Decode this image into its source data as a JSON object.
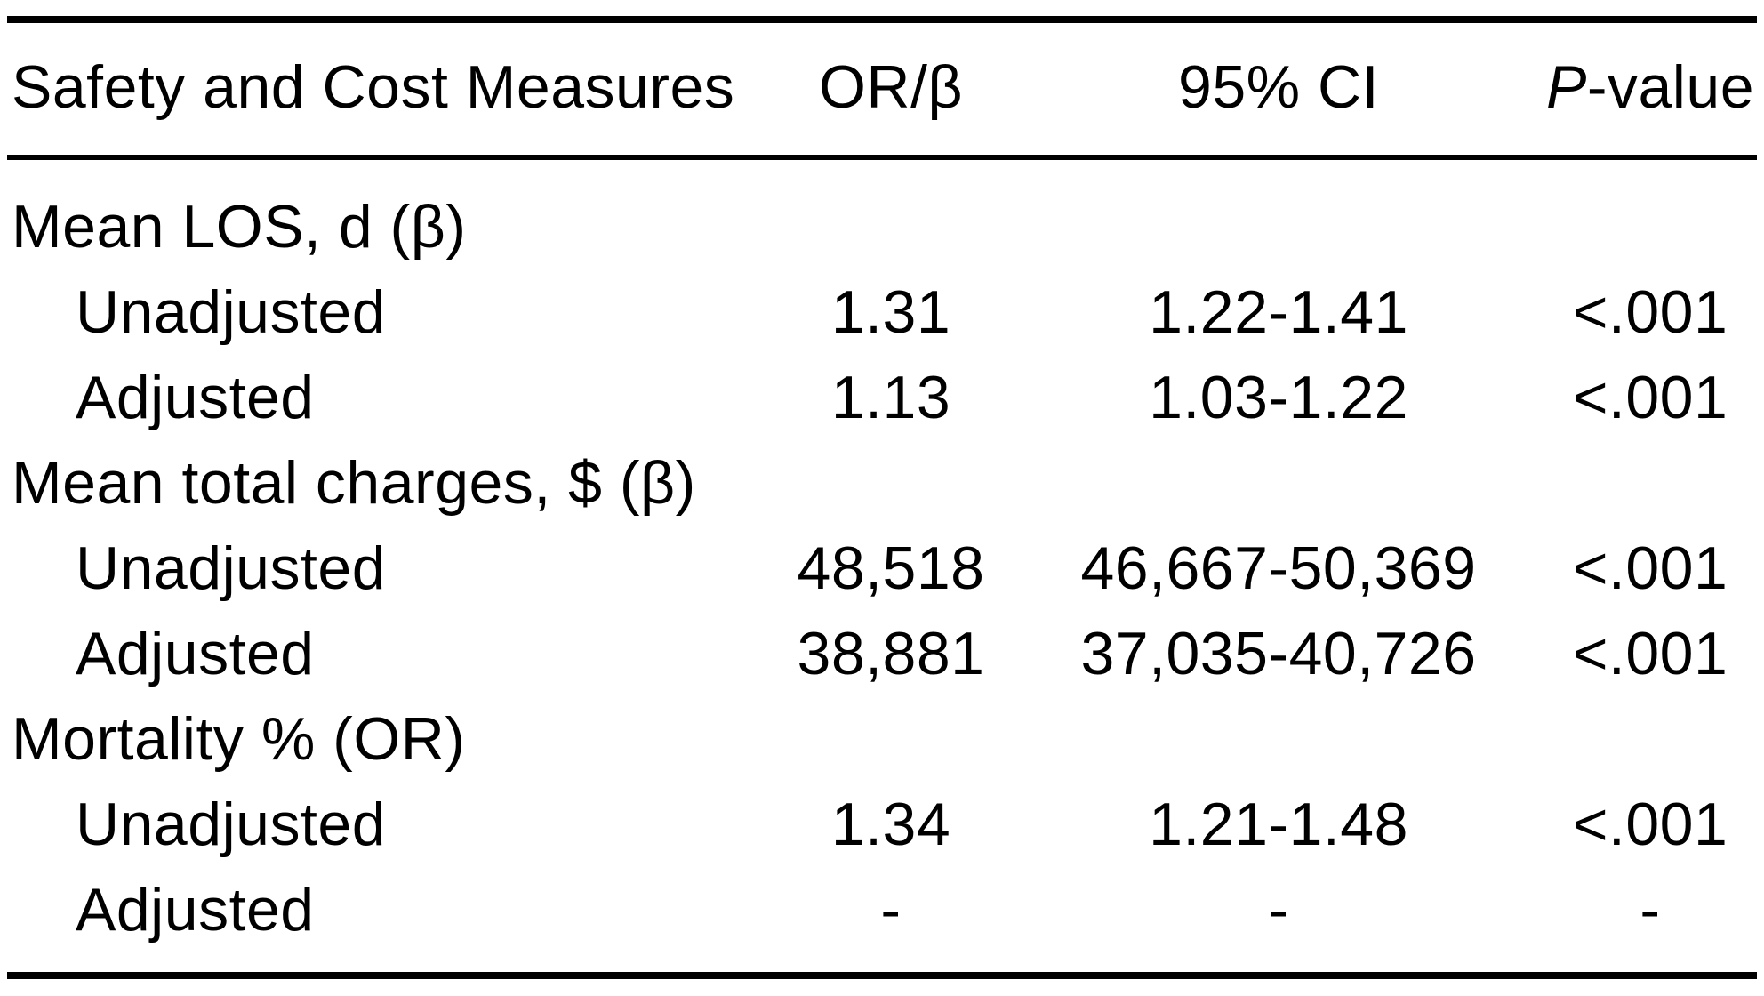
{
  "table": {
    "header": {
      "measures": "Safety and Cost Measures",
      "or_beta": "OR/β",
      "ci": "95% CI",
      "p_italic": "P",
      "p_rest": "-value"
    },
    "rows": [
      {
        "label": "Mean LOS, d (β)",
        "or_beta": "",
        "ci": "",
        "p": ""
      },
      {
        "label": "Unadjusted",
        "or_beta": "1.31",
        "ci": "1.22-1.41",
        "p": "<.001"
      },
      {
        "label": "Adjusted",
        "or_beta": "1.13",
        "ci": "1.03-1.22",
        "p": "<.001"
      },
      {
        "label": "Mean total charges, $ (β)",
        "or_beta": "",
        "ci": "",
        "p": ""
      },
      {
        "label": "Unadjusted",
        "or_beta": "48,518",
        "ci": "46,667-50,369",
        "p": "<.001"
      },
      {
        "label": "Adjusted",
        "or_beta": "38,881",
        "ci": "37,035-40,726",
        "p": "<.001"
      },
      {
        "label": "Mortality % (OR)",
        "or_beta": "",
        "ci": "",
        "p": ""
      },
      {
        "label": "Unadjusted",
        "or_beta": "1.34",
        "ci": "1.21-1.48",
        "p": "<.001"
      },
      {
        "label": "Adjusted",
        "or_beta": "-",
        "ci": "-",
        "p": "-"
      }
    ]
  },
  "colors": {
    "background": "#ffffff",
    "text": "#000000",
    "rule": "#000000"
  }
}
